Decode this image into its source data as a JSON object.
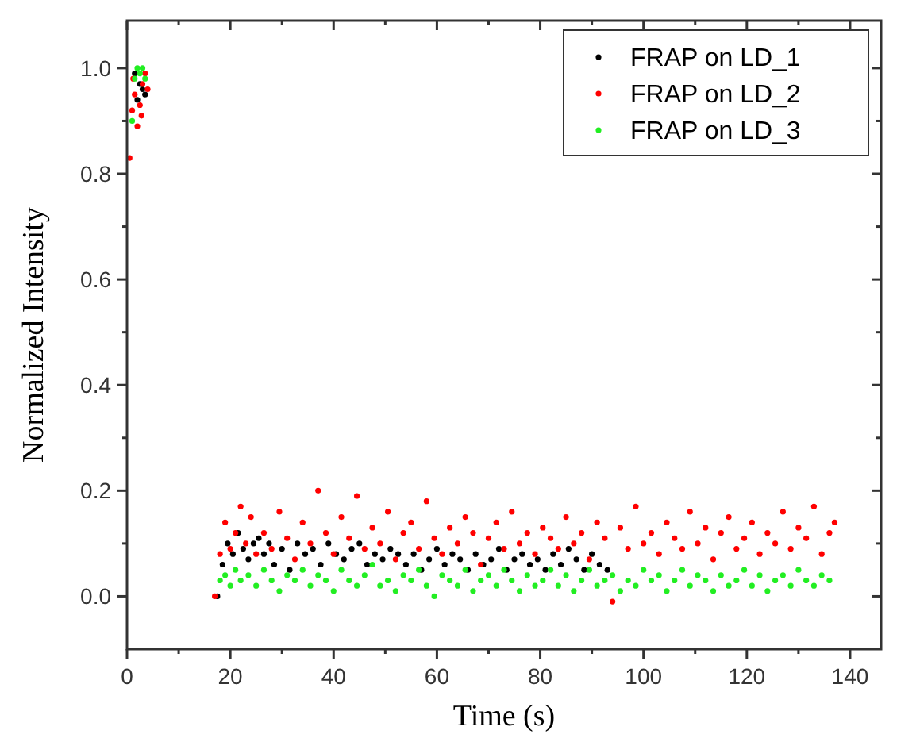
{
  "chart_data": {
    "type": "scatter",
    "xlabel": "Time (s)",
    "ylabel": "Normalized Intensity",
    "xlim": [
      0,
      146
    ],
    "ylim": [
      -0.1,
      1.09
    ],
    "xticks": [
      0,
      {
        "value": 10,
        "label": null
      },
      20,
      {
        "value": 30,
        "label": null
      },
      40,
      {
        "value": 50,
        "label": null
      },
      60,
      {
        "value": 70,
        "label": null
      },
      80,
      {
        "value": 90,
        "label": null
      },
      100,
      {
        "value": 110,
        "label": null
      },
      120,
      {
        "value": 130,
        "label": null
      },
      140
    ],
    "yticks": [
      {
        "value": 0,
        "label": "0.0"
      },
      {
        "value": 0.1,
        "label": null
      },
      0.2,
      {
        "value": 0.3,
        "label": null
      },
      0.4,
      {
        "value": 0.5,
        "label": null
      },
      0.6,
      {
        "value": 0.7,
        "label": null
      },
      0.8,
      {
        "value": 0.9,
        "label": null
      },
      {
        "value": 1,
        "label": "1.0"
      }
    ],
    "grid": false,
    "legend": "top right",
    "marker": "circle",
    "series": [
      {
        "name": "FRAP on LD_1",
        "color": "#000000",
        "x": [
          1.5,
          2.0,
          2.5,
          3.0,
          3.5,
          17.5,
          18.5,
          19.5,
          20.5,
          21.5,
          22.5,
          23.5,
          24.5,
          25.5,
          26.5,
          27.5,
          28.5,
          30,
          31.5,
          33,
          34.5,
          36,
          37.5,
          39,
          40.5,
          42,
          43.5,
          45,
          46.5,
          48,
          49.5,
          51,
          52.5,
          54,
          55.5,
          57,
          58.5,
          60,
          61.5,
          63,
          64.5,
          66,
          67.5,
          69,
          70.5,
          72,
          73.5,
          75,
          76.5,
          78,
          79.5,
          81,
          82.5,
          84,
          85.5,
          87,
          88.5,
          90,
          91.5,
          93
        ],
        "values": [
          0.99,
          0.94,
          0.97,
          0.96,
          0.95,
          0.0,
          0.06,
          0.1,
          0.08,
          0.12,
          0.09,
          0.07,
          0.1,
          0.11,
          0.08,
          0.1,
          0.06,
          0.09,
          0.05,
          0.1,
          0.08,
          0.09,
          0.06,
          0.1,
          0.08,
          0.07,
          0.09,
          0.1,
          0.06,
          0.08,
          0.07,
          0.09,
          0.08,
          0.06,
          0.08,
          0.05,
          0.07,
          0.09,
          0.06,
          0.08,
          0.07,
          0.05,
          0.08,
          0.06,
          0.07,
          0.09,
          0.05,
          0.07,
          0.08,
          0.06,
          0.07,
          0.05,
          0.08,
          0.06,
          0.09,
          0.07,
          0.05,
          0.08,
          0.06,
          0.05
        ]
      },
      {
        "name": "FRAP on LD_2",
        "color": "#ff0000",
        "x": [
          0.5,
          1,
          1.2,
          1.5,
          2,
          2.5,
          2.8,
          3,
          3.5,
          4,
          17,
          18,
          19,
          20,
          21,
          22,
          23,
          24,
          25,
          26.5,
          28,
          29.5,
          31,
          32.5,
          34,
          35.5,
          37,
          38.5,
          40,
          41.5,
          43,
          44.5,
          46,
          47.5,
          49,
          50.5,
          52,
          53.5,
          55,
          56.5,
          58,
          59.5,
          61,
          62.5,
          64,
          65.5,
          67,
          68.5,
          70,
          71.5,
          73,
          74.5,
          76,
          77.5,
          79,
          80.5,
          82,
          83.5,
          85,
          86.5,
          88,
          89.5,
          91,
          92.5,
          94,
          95.5,
          97,
          98.5,
          100,
          101.5,
          103,
          104.5,
          106,
          107.5,
          109,
          110.5,
          112,
          113.5,
          115,
          116.5,
          118,
          119.5,
          121,
          122.5,
          124,
          125.5,
          127,
          128.5,
          130,
          131.5,
          133,
          134.5,
          136,
          137
        ],
        "values": [
          0.83,
          0.92,
          0.98,
          0.95,
          0.89,
          0.93,
          0.91,
          0.97,
          0.99,
          0.96,
          0.0,
          0.08,
          0.14,
          0.09,
          0.12,
          0.17,
          0.1,
          0.15,
          0.08,
          0.12,
          0.09,
          0.16,
          0.11,
          0.07,
          0.14,
          0.1,
          0.2,
          0.12,
          0.08,
          0.15,
          0.11,
          0.19,
          0.09,
          0.13,
          0.1,
          0.16,
          0.07,
          0.12,
          0.14,
          0.09,
          0.18,
          0.11,
          0.08,
          0.13,
          0.1,
          0.15,
          0.12,
          0.06,
          0.11,
          0.14,
          0.09,
          0.16,
          0.1,
          0.12,
          0.08,
          0.13,
          0.11,
          0.09,
          0.15,
          0.1,
          0.12,
          0.07,
          0.14,
          0.11,
          -0.01,
          0.13,
          0.09,
          0.17,
          0.1,
          0.12,
          0.08,
          0.14,
          0.11,
          0.09,
          0.16,
          0.1,
          0.13,
          0.07,
          0.12,
          0.15,
          0.09,
          0.11,
          0.14,
          0.08,
          0.12,
          0.1,
          0.16,
          0.09,
          0.13,
          0.11,
          0.17,
          0.08,
          0.12,
          0.14
        ]
      },
      {
        "name": "FRAP on LD_3",
        "color": "#22ee22",
        "x": [
          1,
          1.5,
          2,
          2.5,
          3,
          3.5,
          18,
          19,
          20,
          21,
          22,
          23.5,
          25,
          26.5,
          28,
          29.5,
          31,
          32.5,
          34,
          35.5,
          37,
          38.5,
          40,
          41.5,
          43,
          44.5,
          46,
          47.5,
          49,
          50.5,
          52,
          53.5,
          55,
          56.5,
          58,
          59.5,
          61,
          62.5,
          64,
          65.5,
          67,
          68.5,
          70,
          71.5,
          73,
          74.5,
          76,
          77.5,
          79,
          80.5,
          82,
          83.5,
          85,
          86.5,
          88,
          89.5,
          91,
          92.5,
          94,
          95.5,
          97,
          98.5,
          100,
          101.5,
          103,
          104.5,
          106,
          107.5,
          109,
          110.5,
          112,
          113.5,
          115,
          116.5,
          118,
          119.5,
          121,
          122.5,
          124,
          125.5,
          127,
          128.5,
          130,
          131.5,
          133,
          134.5,
          136
        ],
        "values": [
          0.9,
          0.98,
          1.0,
          0.99,
          1.0,
          0.98,
          0.03,
          0.04,
          0.02,
          0.05,
          0.03,
          0.04,
          0.02,
          0.05,
          0.03,
          0.01,
          0.04,
          0.03,
          0.05,
          0.02,
          0.04,
          0.03,
          0.01,
          0.05,
          0.03,
          0.02,
          0.04,
          0.06,
          0.02,
          0.03,
          0.01,
          0.04,
          0.03,
          0.05,
          0.02,
          0.0,
          0.04,
          0.03,
          0.02,
          0.05,
          0.01,
          0.03,
          0.04,
          0.02,
          0.05,
          0.03,
          0.01,
          0.04,
          0.02,
          0.03,
          0.05,
          0.02,
          0.04,
          0.01,
          0.03,
          0.05,
          0.02,
          0.03,
          0.04,
          0.01,
          0.03,
          0.02,
          0.05,
          0.03,
          0.04,
          0.01,
          0.03,
          0.05,
          0.02,
          0.04,
          0.03,
          0.01,
          0.04,
          0.02,
          0.03,
          0.05,
          0.02,
          0.04,
          0.01,
          0.03,
          0.04,
          0.02,
          0.05,
          0.03,
          0.02,
          0.04,
          0.03
        ]
      }
    ]
  }
}
